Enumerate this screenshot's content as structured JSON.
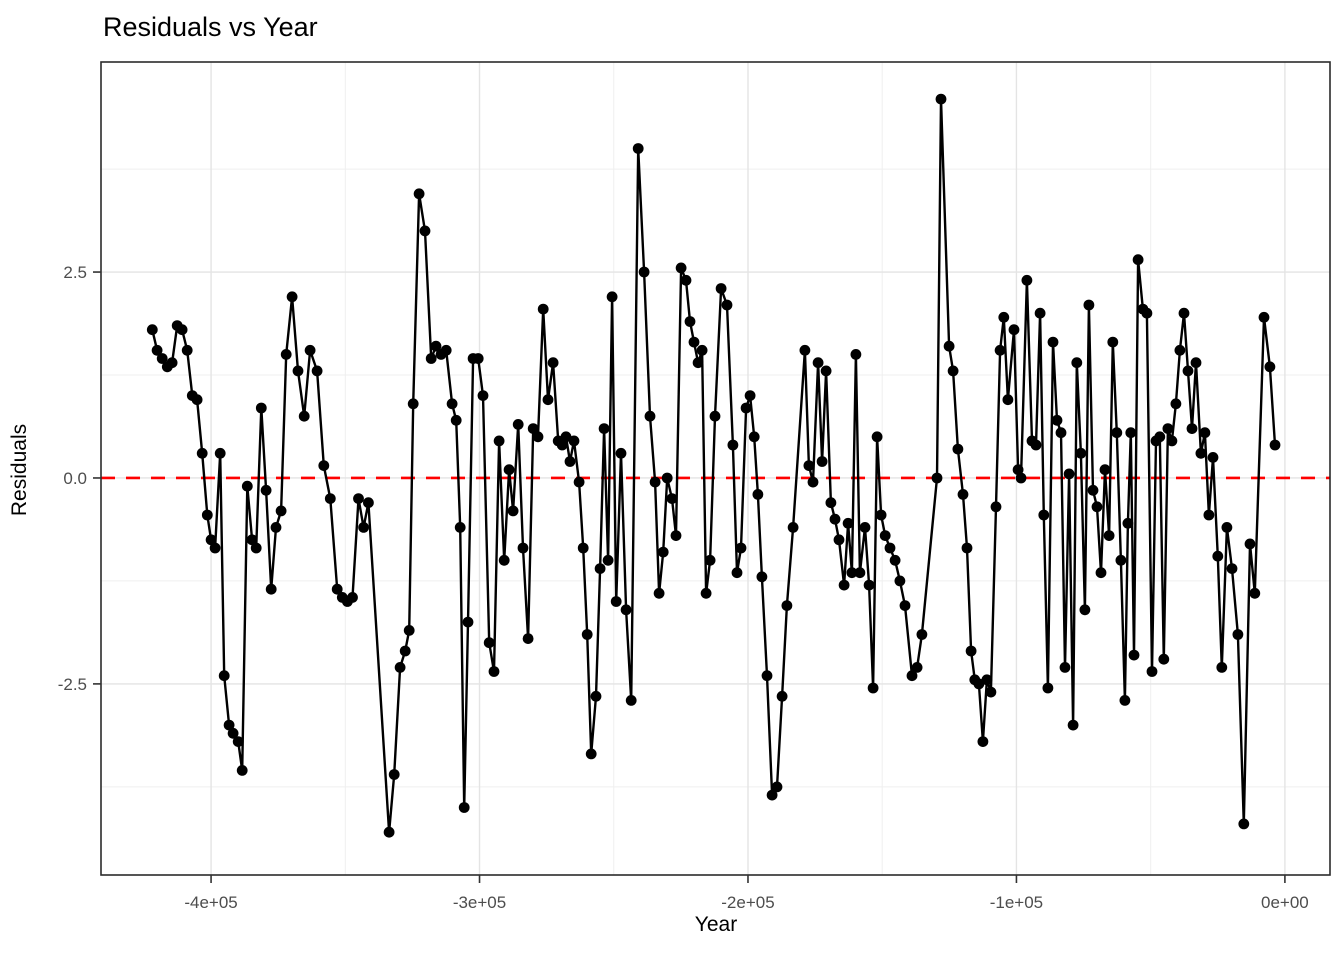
{
  "chart_data": {
    "type": "line",
    "title": "Residuals vs Year",
    "xlabel": "Year",
    "ylabel": "Residuals",
    "legend": "none",
    "grid": true,
    "panel": {
      "background": "#ffffff",
      "border_color": "#2b2b2b",
      "grid_major_color": "#e4e4e4",
      "grid_minor_color": "#efefef"
    },
    "xlim": [
      -441000,
      16800
    ],
    "ylim": [
      -4.82,
      5.05
    ],
    "x_ticks": [
      {
        "value": -400000,
        "label": "-4e+05"
      },
      {
        "value": -300000,
        "label": "-3e+05"
      },
      {
        "value": -200000,
        "label": "-2e+05"
      },
      {
        "value": -100000,
        "label": "-1e+05"
      },
      {
        "value": 0,
        "label": "0e+00"
      }
    ],
    "x_minor": [
      -350000,
      -250000,
      -150000,
      -50000
    ],
    "y_ticks": [
      {
        "value": 2.5,
        "label": "2.5"
      },
      {
        "value": 0.0,
        "label": "0.0"
      },
      {
        "value": -2.5,
        "label": "-2.5"
      }
    ],
    "y_minor": [
      3.75,
      1.25,
      -1.25,
      -3.75
    ],
    "tick_label_color": "#4d4d4d",
    "reference_line": {
      "y": 0,
      "color": "#ff0000",
      "style": "dashed"
    },
    "series": [
      {
        "name": "residuals",
        "color": "#000000",
        "points": [
          [
            -421900,
            1.8
          ],
          [
            -420100,
            1.55
          ],
          [
            -418200,
            1.45
          ],
          [
            -416300,
            1.35
          ],
          [
            -414500,
            1.4
          ],
          [
            -412600,
            1.85
          ],
          [
            -410800,
            1.8
          ],
          [
            -408900,
            1.55
          ],
          [
            -407000,
            1.0
          ],
          [
            -405200,
            0.95
          ],
          [
            -403300,
            0.3
          ],
          [
            -401400,
            -0.45
          ],
          [
            -400000,
            -0.75
          ],
          [
            -398500,
            -0.85
          ],
          [
            -396600,
            0.3
          ],
          [
            -395100,
            -2.4
          ],
          [
            -393300,
            -3.0
          ],
          [
            -391800,
            -3.1
          ],
          [
            -389900,
            -3.2
          ],
          [
            -388400,
            -3.55
          ],
          [
            -386500,
            -0.1
          ],
          [
            -384700,
            -0.75
          ],
          [
            -383200,
            -0.85
          ],
          [
            -381300,
            0.85
          ],
          [
            -379500,
            -0.15
          ],
          [
            -377600,
            -1.35
          ],
          [
            -375800,
            -0.6
          ],
          [
            -373900,
            -0.4
          ],
          [
            -372000,
            1.5
          ],
          [
            -369800,
            2.2
          ],
          [
            -367600,
            1.3
          ],
          [
            -365300,
            0.75
          ],
          [
            -363100,
            1.55
          ],
          [
            -360500,
            1.3
          ],
          [
            -358000,
            0.15
          ],
          [
            -355600,
            -0.25
          ],
          [
            -353000,
            -1.35
          ],
          [
            -351100,
            -1.45
          ],
          [
            -349200,
            -1.5
          ],
          [
            -347300,
            -1.45
          ],
          [
            -345100,
            -0.25
          ],
          [
            -343200,
            -0.6
          ],
          [
            -341400,
            -0.3
          ],
          [
            -333700,
            -4.3
          ],
          [
            -331800,
            -3.6
          ],
          [
            -329600,
            -2.3
          ],
          [
            -327700,
            -2.1
          ],
          [
            -326200,
            -1.85
          ],
          [
            -324700,
            0.9
          ],
          [
            -322500,
            3.45
          ],
          [
            -320300,
            3.0
          ],
          [
            -318000,
            1.45
          ],
          [
            -316200,
            1.6
          ],
          [
            -314300,
            1.5
          ],
          [
            -312400,
            1.55
          ],
          [
            -310200,
            0.9
          ],
          [
            -308700,
            0.7
          ],
          [
            -307200,
            -0.6
          ],
          [
            -305700,
            -4.0
          ],
          [
            -304300,
            -1.75
          ],
          [
            -302400,
            1.45
          ],
          [
            -300500,
            1.45
          ],
          [
            -298700,
            1.0
          ],
          [
            -296400,
            -2.0
          ],
          [
            -294600,
            -2.35
          ],
          [
            -292700,
            0.45
          ],
          [
            -290800,
            -1.0
          ],
          [
            -289000,
            0.1
          ],
          [
            -287500,
            -0.4
          ],
          [
            -285600,
            0.65
          ],
          [
            -283800,
            -0.85
          ],
          [
            -281900,
            -1.95
          ],
          [
            -280000,
            0.6
          ],
          [
            -278200,
            0.5
          ],
          [
            -276300,
            2.05
          ],
          [
            -274500,
            0.95
          ],
          [
            -272600,
            1.4
          ],
          [
            -270700,
            0.45
          ],
          [
            -269200,
            0.4
          ],
          [
            -267800,
            0.5
          ],
          [
            -266300,
            0.2
          ],
          [
            -264800,
            0.45
          ],
          [
            -262900,
            -0.05
          ],
          [
            -261400,
            -0.85
          ],
          [
            -259900,
            -1.9
          ],
          [
            -258400,
            -3.35
          ],
          [
            -256600,
            -2.65
          ],
          [
            -255100,
            -1.1
          ],
          [
            -253600,
            0.6
          ],
          [
            -252100,
            -1.0
          ],
          [
            -250600,
            2.2
          ],
          [
            -249100,
            -1.5
          ],
          [
            -247300,
            0.3
          ],
          [
            -245400,
            -1.6
          ],
          [
            -243500,
            -2.7
          ],
          [
            -240900,
            4.0
          ],
          [
            -238700,
            2.5
          ],
          [
            -236500,
            0.75
          ],
          [
            -234600,
            -0.05
          ],
          [
            -233100,
            -1.4
          ],
          [
            -231600,
            -0.9
          ],
          [
            -230100,
            0.0
          ],
          [
            -228300,
            -0.25
          ],
          [
            -226800,
            -0.7
          ],
          [
            -224900,
            2.55
          ],
          [
            -223100,
            2.4
          ],
          [
            -221600,
            1.9
          ],
          [
            -220100,
            1.65
          ],
          [
            -218600,
            1.4
          ],
          [
            -217100,
            1.55
          ],
          [
            -215600,
            -1.4
          ],
          [
            -214100,
            -1.0
          ],
          [
            -212300,
            0.75
          ],
          [
            -210000,
            2.3
          ],
          [
            -207800,
            2.1
          ],
          [
            -205600,
            0.4
          ],
          [
            -204100,
            -1.15
          ],
          [
            -202600,
            -0.85
          ],
          [
            -200700,
            0.85
          ],
          [
            -199200,
            1.0
          ],
          [
            -197700,
            0.5
          ],
          [
            -196300,
            -0.2
          ],
          [
            -194800,
            -1.2
          ],
          [
            -192900,
            -2.4
          ],
          [
            -191000,
            -3.85
          ],
          [
            -189200,
            -3.75
          ],
          [
            -187300,
            -2.65
          ],
          [
            -185500,
            -1.55
          ],
          [
            -183200,
            -0.6
          ],
          [
            -178800,
            1.55
          ],
          [
            -177300,
            0.15
          ],
          [
            -175800,
            -0.05
          ],
          [
            -173900,
            1.4
          ],
          [
            -172400,
            0.2
          ],
          [
            -170900,
            1.3
          ],
          [
            -169100,
            -0.3
          ],
          [
            -167600,
            -0.5
          ],
          [
            -166100,
            -0.75
          ],
          [
            -164200,
            -1.3
          ],
          [
            -162700,
            -0.55
          ],
          [
            -161300,
            -1.15
          ],
          [
            -159800,
            1.5
          ],
          [
            -158300,
            -1.15
          ],
          [
            -156400,
            -0.6
          ],
          [
            -154900,
            -1.3
          ],
          [
            -153400,
            -2.55
          ],
          [
            -151900,
            0.5
          ],
          [
            -150400,
            -0.45
          ],
          [
            -148900,
            -0.7
          ],
          [
            -147100,
            -0.85
          ],
          [
            -145200,
            -1.0
          ],
          [
            -143400,
            -1.25
          ],
          [
            -141500,
            -1.55
          ],
          [
            -138900,
            -2.4
          ],
          [
            -137000,
            -2.3
          ],
          [
            -135200,
            -1.9
          ],
          [
            -129600,
            0.0
          ],
          [
            -128100,
            4.6
          ],
          [
            -125100,
            1.6
          ],
          [
            -123600,
            1.3
          ],
          [
            -121800,
            0.35
          ],
          [
            -119900,
            -0.2
          ],
          [
            -118400,
            -0.85
          ],
          [
            -116900,
            -2.1
          ],
          [
            -115500,
            -2.45
          ],
          [
            -114000,
            -2.5
          ],
          [
            -112500,
            -3.2
          ],
          [
            -111000,
            -2.45
          ],
          [
            -109500,
            -2.6
          ],
          [
            -107600,
            -0.35
          ],
          [
            -106100,
            1.55
          ],
          [
            -104700,
            1.95
          ],
          [
            -103200,
            0.95
          ],
          [
            -100900,
            1.8
          ],
          [
            -99400,
            0.1
          ],
          [
            -98300,
            0.0
          ],
          [
            -96100,
            2.4
          ],
          [
            -94200,
            0.45
          ],
          [
            -92700,
            0.4
          ],
          [
            -91200,
            2.0
          ],
          [
            -89800,
            -0.45
          ],
          [
            -88300,
            -2.55
          ],
          [
            -86400,
            1.65
          ],
          [
            -84900,
            0.7
          ],
          [
            -83400,
            0.55
          ],
          [
            -81900,
            -2.3
          ],
          [
            -80400,
            0.05
          ],
          [
            -78900,
            -3.0
          ],
          [
            -77500,
            1.4
          ],
          [
            -76000,
            0.3
          ],
          [
            -74500,
            -1.6
          ],
          [
            -73000,
            2.1
          ],
          [
            -71500,
            -0.15
          ],
          [
            -70000,
            -0.35
          ],
          [
            -68500,
            -1.15
          ],
          [
            -67000,
            0.1
          ],
          [
            -65500,
            -0.7
          ],
          [
            -64100,
            1.65
          ],
          [
            -62600,
            0.55
          ],
          [
            -61100,
            -1.0
          ],
          [
            -59600,
            -2.7
          ],
          [
            -58500,
            -0.55
          ],
          [
            -57400,
            0.55
          ],
          [
            -56200,
            -2.15
          ],
          [
            -54700,
            2.65
          ],
          [
            -52900,
            2.05
          ],
          [
            -51400,
            2.0
          ],
          [
            -49500,
            -2.35
          ],
          [
            -48000,
            0.45
          ],
          [
            -46600,
            0.5
          ],
          [
            -45100,
            -2.2
          ],
          [
            -43600,
            0.6
          ],
          [
            -42100,
            0.45
          ],
          [
            -40600,
            0.9
          ],
          [
            -39100,
            1.55
          ],
          [
            -37600,
            2.0
          ],
          [
            -36100,
            1.3
          ],
          [
            -34600,
            0.6
          ],
          [
            -33100,
            1.4
          ],
          [
            -31300,
            0.3
          ],
          [
            -29800,
            0.55
          ],
          [
            -28300,
            -0.45
          ],
          [
            -26800,
            0.25
          ],
          [
            -25000,
            -0.95
          ],
          [
            -23500,
            -2.3
          ],
          [
            -21600,
            -0.6
          ],
          [
            -19700,
            -1.1
          ],
          [
            -17500,
            -1.9
          ],
          [
            -15300,
            -4.2
          ],
          [
            -13000,
            -0.8
          ],
          [
            -11200,
            -1.4
          ],
          [
            -7800,
            1.95
          ],
          [
            -5600,
            1.35
          ],
          [
            -3700,
            0.4
          ]
        ]
      }
    ]
  }
}
